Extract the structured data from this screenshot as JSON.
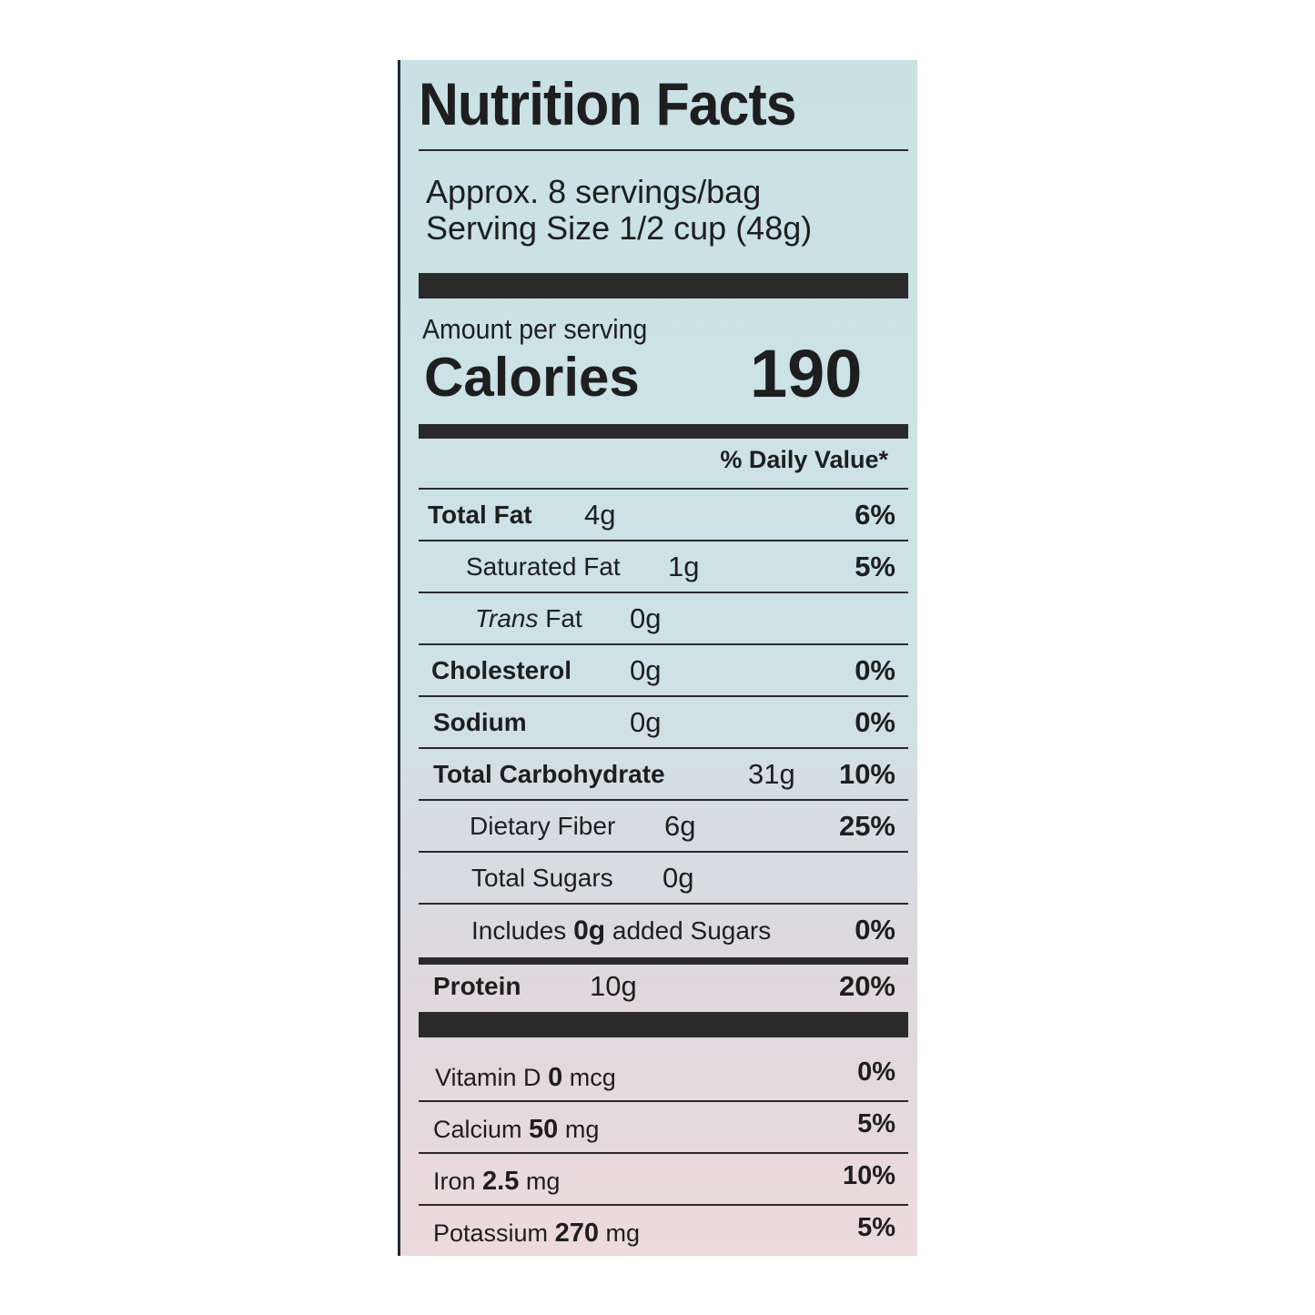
{
  "label": {
    "title": "Nutrition Facts",
    "servings_per_container": "Approx. 8 servings/bag",
    "serving_size": "Serving Size 1/2 cup (48g)",
    "amount_per_serving": "Amount per serving",
    "calories_label": "Calories",
    "calories_value": "190",
    "daily_value_header": "% Daily Value*",
    "nutrients": [
      {
        "name": "Total Fat",
        "amount": "4g",
        "dv": "6%"
      },
      {
        "name": "Saturated Fat",
        "amount": "1g",
        "dv": "5%"
      },
      {
        "name_italic": "Trans",
        "name": " Fat",
        "amount": "0g",
        "dv": ""
      },
      {
        "name": "Cholesterol",
        "amount": "0g",
        "dv": "0%"
      },
      {
        "name": "Sodium",
        "amount": "0g",
        "dv": "0%"
      },
      {
        "name": "Total Carbohydrate",
        "amount": "31g",
        "dv": "10%"
      },
      {
        "name": "Dietary Fiber",
        "amount": "6g",
        "dv": "25%"
      },
      {
        "name": "Total Sugars",
        "amount": "0g",
        "dv": ""
      },
      {
        "name_pre": "Includes ",
        "amount": "0g",
        "name_post": " added Sugars",
        "dv": "0%"
      },
      {
        "name": "Protein",
        "amount": "10g",
        "dv": "20%"
      }
    ],
    "vitamins": [
      {
        "name": "Vitamin D",
        "amount": "0",
        "unit": "mcg",
        "dv": "0%"
      },
      {
        "name": "Calcium",
        "amount": "50",
        "unit": "mg",
        "dv": "5%"
      },
      {
        "name": "Iron",
        "amount": "2.5",
        "unit": "mg",
        "dv": "10%"
      },
      {
        "name": "Potassium",
        "amount": "270",
        "unit": "mg",
        "dv": "5%"
      }
    ]
  }
}
